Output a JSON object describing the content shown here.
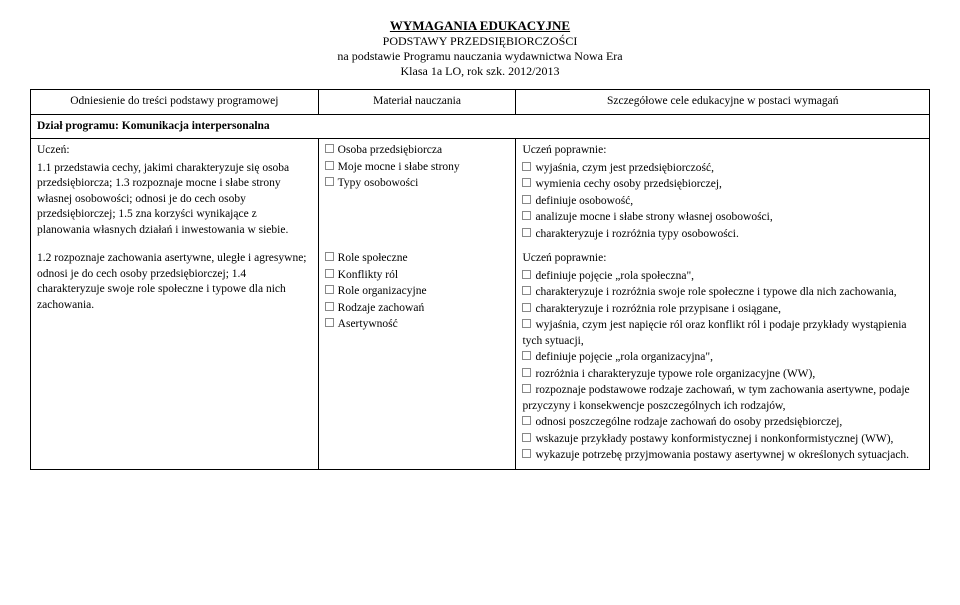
{
  "title": {
    "main": "WYMAGANIA EDUKACYJNE",
    "line2": "PODSTAWY PRZEDSIĘBIORCZOŚCI",
    "line3": "na podstawie Programu nauczania wydawnictwa Nowa Era",
    "line4": "Klasa 1a LO, rok szk. 2012/2013"
  },
  "headers": {
    "col1": "Odniesienie do treści podstawy programowej",
    "col2": "Materiał nauczania",
    "col3": "Szczegółowe cele edukacyjne w postaci wymagań"
  },
  "section": {
    "label": "Dział programu:",
    "name": "Komunikacja interpersonalna"
  },
  "row1": {
    "left": {
      "intro": "Uczeń:",
      "text": "1.1 przedstawia cechy, jakimi charakteryzuje się osoba przedsiębiorcza; 1.3 rozpoznaje mocne i słabe strony własnej osobowości; odnosi je do cech osoby przedsiębiorczej; 1.5 zna korzyści wynikające z planowania własnych działań i inwestowania w siebie."
    },
    "mid": {
      "items": [
        "Osoba przedsiębiorcza",
        "Moje mocne i słabe strony",
        "Typy osobowości"
      ]
    },
    "right": {
      "intro": "Uczeń poprawnie:",
      "items": [
        "wyjaśnia, czym jest przedsiębiorczość,",
        "wymienia cechy osoby przedsiębiorczej,",
        "definiuje osobowość,",
        "analizuje mocne i słabe strony własnej osobowości,",
        "charakteryzuje i rozróżnia typy osobowości."
      ]
    }
  },
  "row2": {
    "left": {
      "text": "1.2 rozpoznaje zachowania asertywne, uległe i agresywne; odnosi je do cech osoby przedsiębiorczej; 1.4 charakteryzuje swoje role społeczne i typowe dla nich zachowania."
    },
    "mid": {
      "items": [
        "Role społeczne",
        "Konflikty ról",
        "Role organizacyjne",
        "Rodzaje zachowań",
        "Asertywność"
      ]
    },
    "right": {
      "intro": "Uczeń poprawnie:",
      "items": [
        "definiuje pojęcie „rola społeczna\",",
        "charakteryzuje i rozróżnia swoje role społeczne i typowe dla nich zachowania,",
        "charakteryzuje i rozróżnia role przypisane i osiągane,",
        "wyjaśnia, czym jest napięcie ról oraz konflikt ról i podaje przykłady wystąpienia tych sytuacji,",
        "definiuje pojęcie „rola organizacyjna\",",
        "rozróżnia i charakteryzuje typowe role organizacyjne (WW),",
        "rozpoznaje podstawowe rodzaje zachowań, w tym zachowania asertywne, podaje przyczyny i konsekwencje poszczególnych ich rodzajów,",
        "odnosi poszczególne rodzaje zachowań do osoby przedsiębiorczej,",
        "wskazuje przykłady postawy konformistycznej i nonkonformistycznej (WW),",
        "wykazuje potrzebę przyjmowania postawy asertywnej w określonych sytuacjach."
      ]
    }
  }
}
